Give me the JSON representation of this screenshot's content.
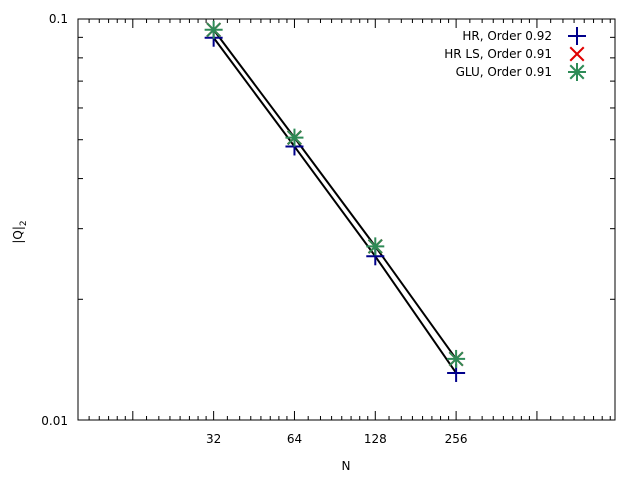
{
  "chart_data": {
    "type": "line",
    "title": "",
    "xlabel": "N",
    "ylabel": "|Q|",
    "ylabel_subscript": "2",
    "xscale": "log2",
    "yscale": "log10",
    "xlim": [
      10,
      1000
    ],
    "ylim": [
      0.01,
      0.1
    ],
    "xticks": [
      32,
      64,
      128,
      256
    ],
    "xtick_labels": [
      "32",
      "64",
      "128",
      "256"
    ],
    "yticks": [
      0.01,
      0.1
    ],
    "ytick_labels": [
      "0.01",
      "0.1"
    ],
    "grid": false,
    "legend_position": "top-right",
    "x": [
      32,
      64,
      128,
      256
    ],
    "series": [
      {
        "name": "HR, Order 0.92",
        "marker": "plus",
        "color": "#00008b",
        "values": [
          0.0898,
          0.0481,
          0.0256,
          0.0131
        ]
      },
      {
        "name": "HR LS, Order 0.91",
        "marker": "cross",
        "color": "#e00000",
        "values": [
          0.094,
          0.0506,
          0.0271,
          0.0142
        ]
      },
      {
        "name": "GLU, Order 0.91",
        "marker": "star",
        "color": "#2e8b57",
        "values": [
          0.094,
          0.0506,
          0.0271,
          0.0142
        ]
      }
    ]
  }
}
